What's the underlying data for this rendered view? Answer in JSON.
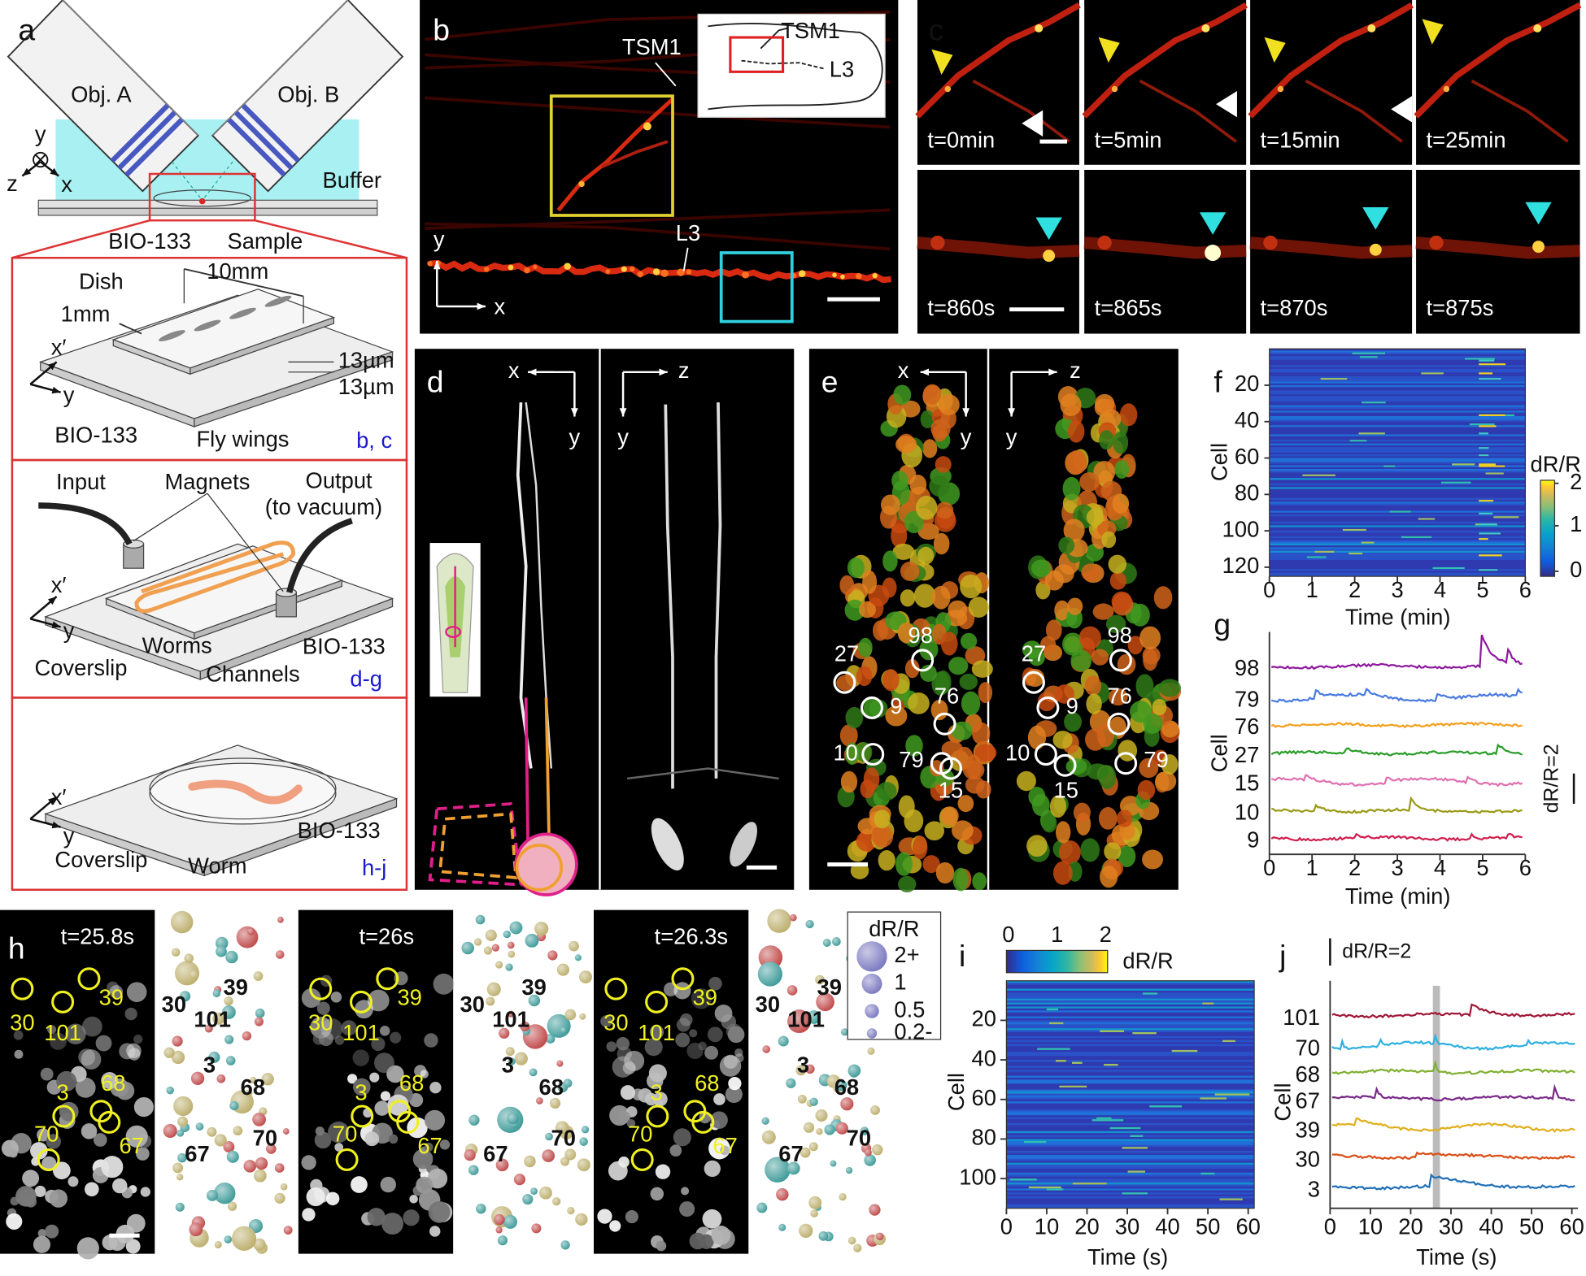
{
  "a": {
    "label": "a",
    "objectives": [
      "Obj. A",
      "Obj. B"
    ],
    "axes": [
      "y",
      "z",
      "x"
    ],
    "buffer": "Buffer",
    "bio133": "BIO-133",
    "sample": "Sample",
    "dish": {
      "dish": "Dish",
      "width": "10mm",
      "gap": "1mm",
      "axes": [
        "x′",
        "y"
      ],
      "thickness": [
        "13µm",
        "13µm"
      ],
      "bio133": "BIO-133",
      "wings": "Fly wings",
      "panels": "b, c"
    },
    "channels": {
      "input": "Input",
      "magnets": "Magnets",
      "output": "Output",
      "vacuum": "(to vacuum)",
      "axes": [
        "x′",
        "y"
      ],
      "worms": "Worms",
      "coverslip": "Coverslip",
      "channels": "Channels",
      "bio133": "BIO-133",
      "panels": "d-g"
    },
    "well": {
      "axes": [
        "x′",
        "y"
      ],
      "coverslip": "Coverslip",
      "worm": "Worm",
      "bio133": "BIO-133",
      "panels": "h-j"
    }
  },
  "b": {
    "label": "b",
    "tsm1": "TSM1",
    "l3": "L3",
    "inset_tsm1": "TSM1",
    "inset_l3": "L3",
    "axes": [
      "y",
      "x"
    ]
  },
  "c": {
    "label": "c",
    "times": [
      "t=0min",
      "t=5min",
      "t=15min",
      "t=25min",
      "t=860s",
      "t=865s",
      "t=870s",
      "t=875s"
    ]
  },
  "d": {
    "label": "d",
    "views": [
      [
        "x",
        "y"
      ],
      [
        "z",
        "y"
      ]
    ]
  },
  "e": {
    "label": "e",
    "views": [
      [
        "x",
        "y"
      ],
      [
        "z",
        "y"
      ]
    ],
    "cells": [
      [
        "27",
        "98",
        "9",
        "76",
        "10",
        "79",
        "15"
      ],
      [
        "27",
        "98",
        "9",
        "76",
        "10",
        "15",
        "79"
      ]
    ]
  },
  "f": {
    "label": "f",
    "ylabel": "Cell",
    "yticks": [
      20,
      40,
      60,
      80,
      100,
      120
    ],
    "xlabel": "Time (min)",
    "xticks": [
      0,
      1,
      2,
      3,
      4,
      5,
      6
    ],
    "colorbar": {
      "label": "dR/R",
      "ticks": [
        2,
        1,
        0
      ]
    }
  },
  "g": {
    "label": "g",
    "ylabel": "Cell",
    "cells": [
      "98",
      "79",
      "76",
      "27",
      "15",
      "10",
      "9"
    ],
    "xlabel": "Time (min)",
    "xticks": [
      0,
      1,
      2,
      3,
      4,
      5,
      6
    ],
    "scale": "dR/R=2"
  },
  "h": {
    "label": "h",
    "times": [
      "t=25.8s",
      "t=26s",
      "t=26.3s"
    ],
    "cells": [
      "30",
      "39",
      "101",
      "3",
      "68",
      "67",
      "70"
    ],
    "legend": {
      "title": "dR/R",
      "sizes": [
        "2+",
        "1",
        "0.5",
        "0.2-"
      ]
    }
  },
  "i": {
    "label": "i",
    "colorbar": {
      "ticks": [
        0,
        1,
        2
      ],
      "label": "dR/R"
    },
    "ylabel": "Cell",
    "yticks": [
      20,
      40,
      60,
      80,
      100
    ],
    "xlabel": "Time (s)",
    "xticks": [
      0,
      10,
      20,
      30,
      40,
      50,
      60
    ]
  },
  "j": {
    "label": "j",
    "scale": "dR/R=2",
    "ylabel": "Cell",
    "cells": [
      "101",
      "70",
      "68",
      "67",
      "39",
      "30",
      "3"
    ],
    "xlabel": "Time (s)",
    "xticks": [
      0,
      10,
      20,
      30,
      40,
      50,
      60
    ]
  }
}
